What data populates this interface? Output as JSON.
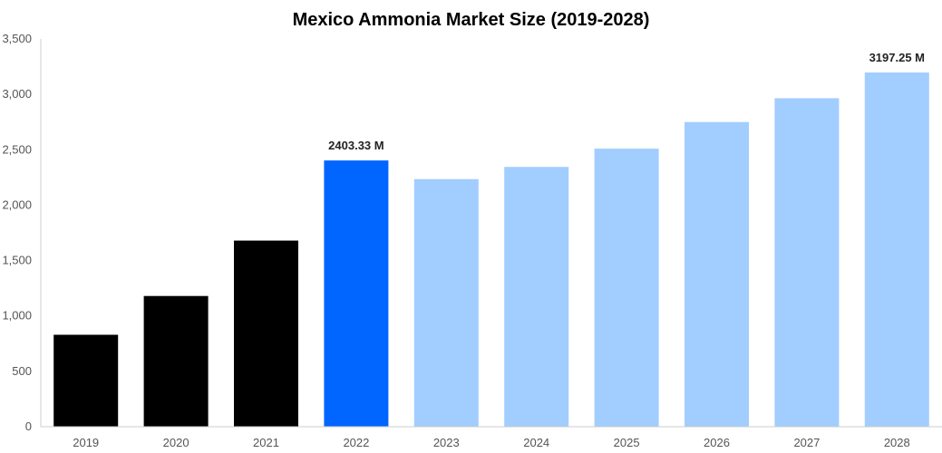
{
  "chart_data": {
    "type": "bar",
    "title": "Mexico Ammonia Market Size (2019-2028)",
    "xlabel": "",
    "ylabel": "",
    "categories": [
      "2019",
      "2020",
      "2021",
      "2022",
      "2023",
      "2024",
      "2025",
      "2026",
      "2027",
      "2028"
    ],
    "values": [
      830,
      1180,
      1680,
      2403.33,
      2235,
      2345,
      2510,
      2750,
      2965,
      3197.25
    ],
    "ylim": [
      0,
      3500
    ],
    "yticks": [
      0,
      500,
      1000,
      1500,
      2000,
      2500,
      3000,
      3500
    ],
    "ytick_labels": [
      "0",
      "500",
      "1,000",
      "1,500",
      "2,000",
      "2,500",
      "3,000",
      "3,500"
    ],
    "grid": false,
    "legend": "none",
    "bar_colors": [
      "#000000",
      "#000000",
      "#000000",
      "#0066ff",
      "#a2cdff",
      "#a2cdff",
      "#a2cdff",
      "#a2cdff",
      "#a2cdff",
      "#a2cdff"
    ],
    "data_labels": [
      {
        "category": "2022",
        "text": "2403.33 M"
      },
      {
        "category": "2028",
        "text": "3197.25 M"
      }
    ]
  },
  "colors": {
    "historic": "#000000",
    "current": "#0066ff",
    "forecast": "#a2cdff",
    "axis": "#cccccc"
  }
}
